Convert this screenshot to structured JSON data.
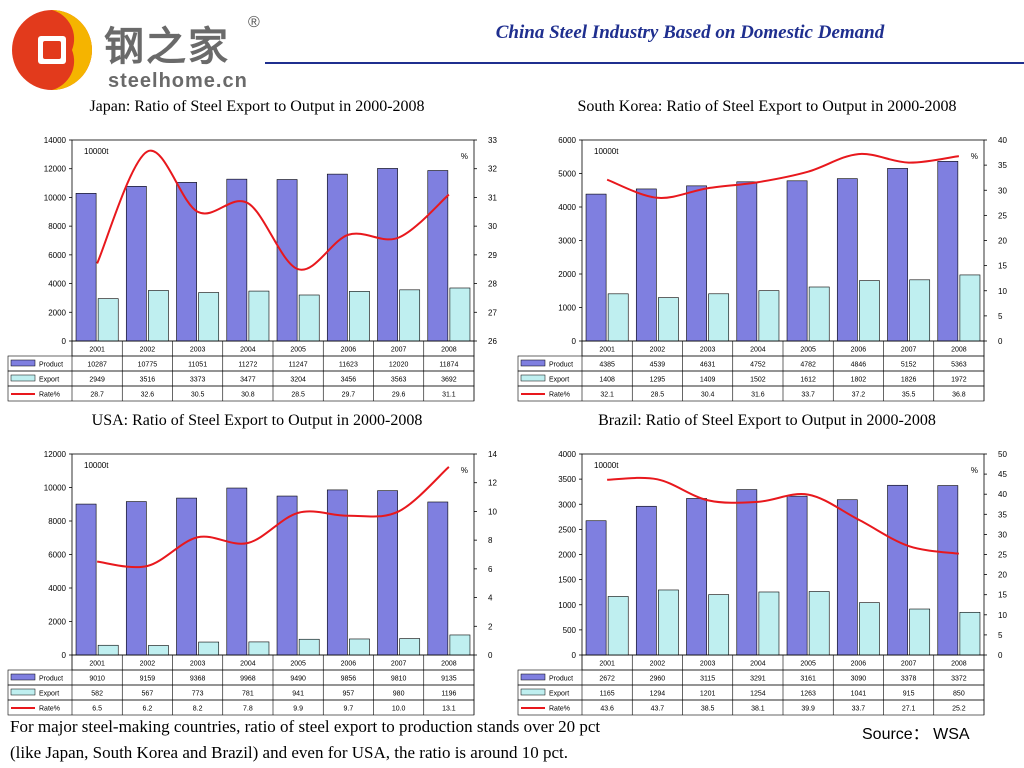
{
  "header": {
    "logo_cn": "钢之家",
    "logo_reg": "®",
    "logo_en": "steelhome.cn",
    "title": "China Steel Industry Based on Domestic Demand"
  },
  "footer": {
    "line1": "For major steel-making countries, ratio of steel export to production stands over 20 pct",
    "line2": "(like Japan, South Korea and Brazil) and even for USA, the ratio is around 10 pct.",
    "source": "Source： WSA"
  },
  "colors": {
    "title_blue": "#1f2f8f",
    "product_bar": "#7f7fe0",
    "export_bar": "#bfeff0",
    "rate_line": "#e8181d"
  },
  "chart_data": [
    {
      "type": "bar",
      "title": "Japan: Ratio of Steel Export to Output in 2000-2008",
      "left_unit": "10000t",
      "right_unit": "%",
      "categories": [
        "2001",
        "2002",
        "2003",
        "2004",
        "2005",
        "2006",
        "2007",
        "2008"
      ],
      "ylim": [
        0,
        14000
      ],
      "yticks": [
        0,
        2000,
        4000,
        6000,
        8000,
        10000,
        12000,
        14000
      ],
      "y2lim": [
        26,
        33
      ],
      "y2ticks": [
        26,
        27,
        28,
        29,
        30,
        31,
        32,
        33
      ],
      "series": [
        {
          "name": "Product",
          "kind": "bar",
          "values": [
            10287,
            10775,
            11051,
            11272,
            11247,
            11623,
            12020,
            11874
          ],
          "labels": [
            "10287",
            "10775",
            "11051",
            "11272",
            "11247",
            "11623",
            "12020",
            "11874"
          ]
        },
        {
          "name": "Export",
          "kind": "bar",
          "values": [
            2949,
            3516,
            3373,
            3477,
            3204,
            3456,
            3563,
            3692
          ],
          "labels": [
            "2949",
            "3516",
            "3373",
            "3477",
            "3204",
            "3456",
            "3563",
            "3692"
          ]
        },
        {
          "name": "Rate%",
          "kind": "line",
          "axis": "right",
          "values": [
            28.7,
            32.6,
            30.5,
            30.8,
            28.5,
            29.7,
            29.6,
            31.1
          ],
          "labels": [
            "28.7",
            "32.6",
            "30.5",
            "30.8",
            "28.5",
            "29.7",
            "29.6",
            "31.1"
          ]
        }
      ]
    },
    {
      "type": "bar",
      "title": "South Korea: Ratio of Steel Export to Output in 2000-2008",
      "left_unit": "10000t",
      "right_unit": "%",
      "categories": [
        "2001",
        "2002",
        "2003",
        "2004",
        "2005",
        "2006",
        "2007",
        "2008"
      ],
      "ylim": [
        0,
        6000
      ],
      "yticks": [
        0,
        1000,
        2000,
        3000,
        4000,
        5000,
        6000
      ],
      "y2lim": [
        0,
        40
      ],
      "y2ticks": [
        0,
        5,
        10,
        15,
        20,
        25,
        30,
        35,
        40
      ],
      "series": [
        {
          "name": "Product",
          "kind": "bar",
          "values": [
            4385,
            4539,
            4631,
            4752,
            4782,
            4846,
            5152,
            5363
          ],
          "labels": [
            "4385",
            "4539",
            "4631",
            "4752",
            "4782",
            "4846",
            "5152",
            "5363"
          ]
        },
        {
          "name": "Export",
          "kind": "bar",
          "values": [
            1408,
            1295,
            1409,
            1502,
            1612,
            1802,
            1826,
            1972
          ],
          "labels": [
            "1408",
            "1295",
            "1409",
            "1502",
            "1612",
            "1802",
            "1826",
            "1972"
          ]
        },
        {
          "name": "Rate%",
          "kind": "line",
          "axis": "right",
          "values": [
            32.1,
            28.5,
            30.4,
            31.6,
            33.7,
            37.2,
            35.5,
            36.8
          ],
          "labels": [
            "32.1",
            "28.5",
            "30.4",
            "31.6",
            "33.7",
            "37.2",
            "35.5",
            "36.8"
          ]
        }
      ]
    },
    {
      "type": "bar",
      "title": "USA: Ratio of Steel Export to Output in 2000-2008",
      "left_unit": "10000t",
      "right_unit": "%",
      "categories": [
        "2001",
        "2002",
        "2003",
        "2004",
        "2005",
        "2006",
        "2007",
        "2008"
      ],
      "ylim": [
        0,
        12000
      ],
      "yticks": [
        0,
        2000,
        4000,
        6000,
        8000,
        10000,
        12000
      ],
      "y2lim": [
        0,
        14
      ],
      "y2ticks": [
        0,
        2,
        4,
        6,
        8,
        10,
        12,
        14
      ],
      "series": [
        {
          "name": "Product",
          "kind": "bar",
          "values": [
            9010,
            9159,
            9368,
            9968,
            9490,
            9856,
            9810,
            9135
          ],
          "labels": [
            "9010",
            "9159",
            "9368",
            "9968",
            "9490",
            "9856",
            "9810",
            "9135"
          ]
        },
        {
          "name": "Export",
          "kind": "bar",
          "values": [
            582,
            567,
            773,
            781,
            941,
            957,
            980,
            1196
          ],
          "labels": [
            "582",
            "567",
            "773",
            "781",
            "941",
            "957",
            "980",
            "1196"
          ]
        },
        {
          "name": "Rate%",
          "kind": "line",
          "axis": "right",
          "values": [
            6.5,
            6.2,
            8.2,
            7.8,
            9.9,
            9.7,
            10.0,
            13.1
          ],
          "labels": [
            "6.5",
            "6.2",
            "8.2",
            "7.8",
            "9.9",
            "9.7",
            "10.0",
            "13.1"
          ]
        }
      ]
    },
    {
      "type": "bar",
      "title": "Brazil: Ratio of Steel Export to Output in 2000-2008",
      "left_unit": "10000t",
      "right_unit": "%",
      "categories": [
        "2001",
        "2002",
        "2003",
        "2004",
        "2005",
        "2006",
        "2007",
        "2008"
      ],
      "ylim": [
        0,
        4000
      ],
      "yticks": [
        0,
        500,
        1000,
        1500,
        2000,
        2500,
        3000,
        3500,
        4000
      ],
      "y2lim": [
        0,
        50
      ],
      "y2ticks": [
        0,
        5,
        10,
        15,
        20,
        25,
        30,
        35,
        40,
        45,
        50
      ],
      "series": [
        {
          "name": "Product",
          "kind": "bar",
          "values": [
            2672,
            2960,
            3115,
            3291,
            3161,
            3090,
            3378,
            3372
          ],
          "labels": [
            "2672",
            "2960",
            "3115",
            "3291",
            "3161",
            "3090",
            "3378",
            "3372"
          ]
        },
        {
          "name": "Export",
          "kind": "bar",
          "values": [
            1165,
            1294,
            1201,
            1254,
            1263,
            1041,
            915,
            850
          ],
          "labels": [
            "1165",
            "1294",
            "1201",
            "1254",
            "1263",
            "1041",
            "915",
            "850"
          ]
        },
        {
          "name": "Rate%",
          "kind": "line",
          "axis": "right",
          "values": [
            43.6,
            43.7,
            38.5,
            38.1,
            39.9,
            33.7,
            27.1,
            25.2
          ],
          "labels": [
            "43.6",
            "43.7",
            "38.5",
            "38.1",
            "39.9",
            "33.7",
            "27.1",
            "25.2"
          ]
        }
      ]
    }
  ]
}
